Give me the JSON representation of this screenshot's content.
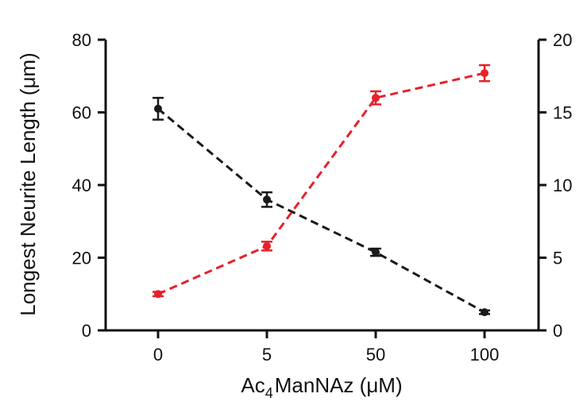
{
  "chart_data": {
    "type": "line",
    "title": "",
    "xlabel": "Ac4ManNAz (μM)",
    "xlabel_parts": {
      "prefix": "Ac",
      "subscript": "4",
      "suffix": "ManNAz (μM)"
    },
    "ylabel_left": "Longest Neurite Length (μm)",
    "ylabel_right": "",
    "categories": [
      "0",
      "5",
      "50",
      "100"
    ],
    "y_left": {
      "lim": [
        0,
        80
      ],
      "ticks": [
        0,
        20,
        40,
        60,
        80
      ]
    },
    "y_right": {
      "lim": [
        0,
        20
      ],
      "ticks": [
        0,
        5,
        10,
        15,
        20
      ]
    },
    "grid": false,
    "series": [
      {
        "axis": "left",
        "color": "#1a1a1a",
        "line_style": "dashed",
        "values": [
          61,
          36,
          21.5,
          5
        ],
        "errors": [
          3,
          2,
          1,
          0.5
        ]
      },
      {
        "axis": "right",
        "color": "#e8202a",
        "line_style": "dashed",
        "values": [
          2.5,
          5.8,
          16,
          17.7
        ],
        "errors": [
          0.15,
          0.3,
          0.45,
          0.55
        ]
      }
    ]
  }
}
